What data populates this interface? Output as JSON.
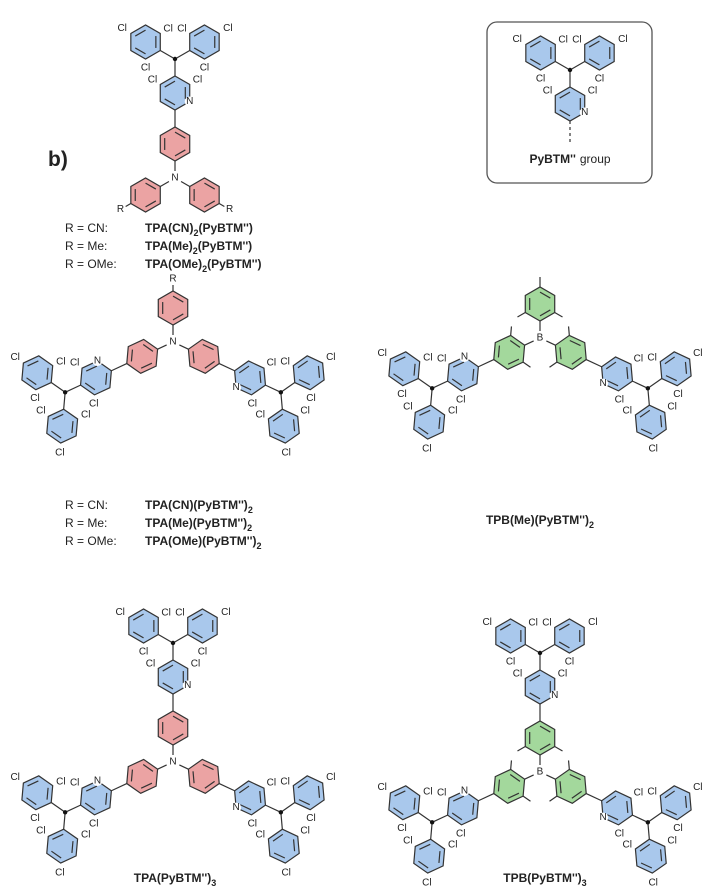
{
  "panel_label": "b)",
  "atom_labels": {
    "chlorine": "Cl",
    "nitrogen": "N",
    "boron": "B",
    "substituent": "R"
  },
  "group_box": {
    "name": "PyBTM''",
    "suffix": "group"
  },
  "series_1": {
    "entries": [
      {
        "r": "R = CN:",
        "name": [
          "TPA(CN)",
          "2",
          "(PyBTM'')"
        ]
      },
      {
        "r": "R = Me:",
        "name": [
          "TPA(Me)",
          "2",
          "(PyBTM'')"
        ]
      },
      {
        "r": "R = OMe:",
        "name": [
          "TPA(OMe)",
          "2",
          "(PyBTM'')"
        ]
      }
    ]
  },
  "series_2": {
    "entries": [
      {
        "r": "R = CN:",
        "name": [
          "TPA(CN)(PyBTM'')",
          "2"
        ]
      },
      {
        "r": "R = Me:",
        "name": [
          "TPA(Me)(PyBTM'')",
          "2"
        ]
      },
      {
        "r": "R = OMe:",
        "name": [
          "TPA(OMe)(PyBTM'')",
          "2"
        ]
      }
    ]
  },
  "tpb_me": {
    "name": [
      "TPB(Me)(PyBTM'')",
      "2"
    ]
  },
  "tpa_tris": {
    "name": [
      "TPA(PyBTM'')",
      "3"
    ]
  },
  "tpb_tris": {
    "name": [
      "TPB(PyBTM'')",
      "3"
    ]
  }
}
